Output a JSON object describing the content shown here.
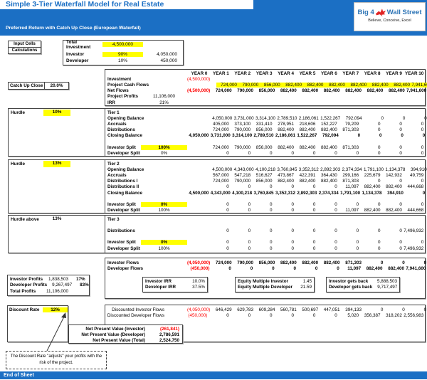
{
  "header": {
    "title": "Simple 3-Tier Waterfall Model for Real Estate",
    "subtitle": "Preferred Return with Catch Up Close (European Waterfall)",
    "logo_left": "Big 4",
    "logo_right": "Wall Street",
    "logo_tagline": "Believe, Conceive, Excel"
  },
  "legend": {
    "input_cells": "Input Cells",
    "calculations": "Calculations"
  },
  "inputs": {
    "total_investment_label": "Total Investment",
    "total_investment": "4,500,000",
    "investor_label": "Investor",
    "investor_pct": "90%",
    "investor_amount": "4,050,000",
    "developer_label": "Developer",
    "developer_pct": "10%",
    "developer_amount": "450,000",
    "catch_up_label": "Catch Up Close",
    "catch_up": "20.0%",
    "discount_rate_label": "Discount Rate",
    "discount_rate": "12%"
  },
  "table": {
    "years": [
      "YEAR 0",
      "YEAR 1",
      "YEAR 2",
      "YEAR 3",
      "YEAR 4",
      "YEAR 5",
      "YEAR 6",
      "YEAR 7",
      "YEAR 8",
      "YEAR 9",
      "YEAR 10"
    ],
    "top_rows": [
      {
        "label": "Investment",
        "cells": [
          "(4,500,000)",
          "",
          "",
          "",
          "",
          "",
          "",
          "",
          "",
          "",
          ""
        ]
      },
      {
        "label": "Project Cash Flows",
        "hl_cells": true,
        "cells": [
          "",
          "724,000",
          "790,000",
          "856,000",
          "882,400",
          "882,400",
          "882,400",
          "882,400",
          "882,400",
          "882,400",
          "7,941,600"
        ]
      },
      {
        "label": "Net Flows",
        "bold_cells": true,
        "cells": [
          "(4,500,000)",
          "724,000",
          "790,000",
          "856,000",
          "882,400",
          "882,400",
          "882,400",
          "882,400",
          "882,400",
          "882,400",
          "7,941,600"
        ]
      },
      {
        "label": "Project Profits",
        "value": "11,106,000"
      },
      {
        "label": "IRR",
        "value": "21%"
      }
    ],
    "tiers": [
      {
        "hurdle_label": "Hurdle",
        "hurdle_value": "10%",
        "hurdle_hl": true,
        "rows": [
          {
            "label": "Tier 1"
          },
          {
            "label": "Opening Balance",
            "cells": [
              "",
              "4,050,000",
              "3,731,000",
              "3,314,100",
              "2,789,510",
              "2,186,061",
              "1,522,267",
              "792,094",
              "0",
              "0",
              "0"
            ]
          },
          {
            "label": "Accruals",
            "cells": [
              "",
              "405,000",
              "373,100",
              "331,410",
              "278,951",
              "218,606",
              "152,227",
              "79,209",
              "0",
              "0",
              "0"
            ]
          },
          {
            "label": "Distributions",
            "cells": [
              "",
              "724,000",
              "790,000",
              "856,000",
              "882,400",
              "882,400",
              "882,400",
              "871,303",
              "0",
              "0",
              "0"
            ]
          },
          {
            "label": "Closing Balance",
            "bold_cells": true,
            "cells": [
              "4,050,000",
              "3,731,000",
              "3,314,100",
              "2,789,510",
              "2,186,061",
              "1,522,267",
              "792,094",
              "0",
              "0",
              "0",
              "0"
            ]
          },
          {
            "blank": true
          },
          {
            "label": "Investor Split",
            "value": "100%",
            "value_hl": true,
            "cells": [
              "",
              "724,000",
              "790,000",
              "856,000",
              "882,400",
              "882,400",
              "882,400",
              "871,303",
              "0",
              "0",
              "0"
            ]
          },
          {
            "label": "Developer Split",
            "value": "0%",
            "cells": [
              "",
              "0",
              "0",
              "0",
              "0",
              "0",
              "0",
              "0",
              "0",
              "0",
              "0"
            ]
          }
        ]
      },
      {
        "hurdle_label": "Hurdle",
        "hurdle_value": "13%",
        "hurdle_hl": true,
        "rows": [
          {
            "label": "Tier 2"
          },
          {
            "label": "Opening Balance",
            "cells": [
              "",
              "4,500,000",
              "4,343,000",
              "4,100,218",
              "3,760,845",
              "3,352,312",
              "2,892,303",
              "2,374,334",
              "1,791,100",
              "1,134,378",
              "394,910"
            ]
          },
          {
            "label": "Accruals",
            "cells": [
              "",
              "567,000",
              "547,218",
              "516,627",
              "473,867",
              "422,391",
              "364,430",
              "299,166",
              "225,679",
              "142,932",
              "49,759"
            ]
          },
          {
            "label": "Distributions I",
            "cells": [
              "",
              "724,000",
              "790,000",
              "856,000",
              "882,400",
              "882,400",
              "882,400",
              "871,303",
              "0",
              "0",
              "0"
            ]
          },
          {
            "label": "Distributions II",
            "cells": [
              "",
              "0",
              "0",
              "0",
              "0",
              "0",
              "0",
              "11,097",
              "882,400",
              "882,400",
              "444,668"
            ]
          },
          {
            "label": "Closing Balance",
            "bold_cells": true,
            "cells": [
              "4,500,000",
              "4,343,000",
              "4,100,218",
              "3,760,845",
              "3,352,312",
              "2,892,303",
              "2,374,334",
              "1,791,100",
              "1,134,378",
              "394,910",
              "0"
            ]
          },
          {
            "blank": true
          },
          {
            "label": "Investor Split",
            "value": "0%",
            "value_hl": true,
            "cells": [
              "",
              "0",
              "0",
              "0",
              "0",
              "0",
              "0",
              "0",
              "0",
              "0",
              "0"
            ]
          },
          {
            "label": "Developer Split",
            "value": "100%",
            "cells": [
              "",
              "0",
              "0",
              "0",
              "0",
              "0",
              "0",
              "11,097",
              "882,400",
              "882,400",
              "444,668"
            ]
          }
        ]
      },
      {
        "hurdle_label": "Hurdle above",
        "hurdle_value": "13%",
        "hurdle_hl": false,
        "rows": [
          {
            "label": "Tier 3"
          },
          {
            "blank": true
          },
          {
            "label": "Distributions",
            "cells": [
              "",
              "0",
              "0",
              "0",
              "0",
              "0",
              "0",
              "0",
              "0",
              "0",
              "7,496,932"
            ]
          },
          {
            "blank": true
          },
          {
            "label": "Investor Split",
            "value": "0%",
            "value_hl": true,
            "cells": [
              "",
              "0",
              "0",
              "0",
              "0",
              "0",
              "0",
              "0",
              "0",
              "0",
              "0"
            ]
          },
          {
            "label": "Developer Split",
            "value": "100%",
            "cells": [
              "",
              "0",
              "0",
              "0",
              "0",
              "0",
              "0",
              "0",
              "0",
              "0",
              "7,496,932"
            ]
          }
        ]
      }
    ],
    "flows_rows": [
      {
        "label": "Investor Flows",
        "bold_cells": true,
        "cells": [
          "(4,050,000)",
          "724,000",
          "790,000",
          "856,000",
          "882,400",
          "882,400",
          "882,400",
          "871,303",
          "0",
          "0",
          "0"
        ]
      },
      {
        "label": "Developer Flows",
        "bold_cells": true,
        "cells": [
          "(450,000)",
          "0",
          "0",
          "0",
          "0",
          "0",
          "0",
          "11,097",
          "882,400",
          "882,400",
          "7,941,600"
        ]
      }
    ],
    "discounted_rows": [
      {
        "label": "Discounted Investor Flows",
        "label_right": true,
        "label_bold": false,
        "cells": [
          "(4,050,000)",
          "646,429",
          "629,783",
          "609,284",
          "560,781",
          "500,697",
          "447,051",
          "394,133",
          "0",
          "0",
          "0"
        ]
      },
      {
        "label": "Discounted Developer Flows",
        "label_right": true,
        "label_bold": false,
        "cells": [
          "(450,000)",
          "0",
          "0",
          "0",
          "0",
          "0",
          "0",
          "5,020",
          "356,387",
          "318,202",
          "2,556,983"
        ]
      }
    ]
  },
  "summary": {
    "profits_rows": [
      [
        "Investor Profits",
        "1,838,503",
        "17%"
      ],
      [
        "Developer Profits",
        "9,267,497",
        "83%"
      ],
      [
        "Total Profits",
        "11,106,000",
        ""
      ]
    ],
    "irr_rows": [
      [
        "Investor IRR",
        "10.0%"
      ],
      [
        "Developer IRR",
        "37.5%"
      ]
    ],
    "equity_rows": [
      [
        "Equity Multiple Investor",
        "1.45"
      ],
      [
        "Equity Multiple Developer",
        "21.59"
      ]
    ],
    "gets_back_rows": [
      [
        "Investor gets back",
        "5,888,503"
      ],
      [
        "Developer gets back",
        "9,717,497"
      ]
    ]
  },
  "npv_rows": [
    [
      "Net Present Value (Investor)",
      "(261,841)"
    ],
    [
      "Net Present Value (Developer)",
      "2,786,591"
    ],
    [
      "Net Present Value (Total)",
      "2,524,750"
    ]
  ],
  "note": "The Discount Rate \"adjusts\" your profits with the risk of the project.",
  "footer": "End of Sheet",
  "colors": {
    "banner_blue": "#1b6fc4",
    "highlight_yellow": "#ffff00",
    "negative_red": "#ff0000",
    "logo_red": "#e02424",
    "logo_blue": "#2e75b6"
  }
}
